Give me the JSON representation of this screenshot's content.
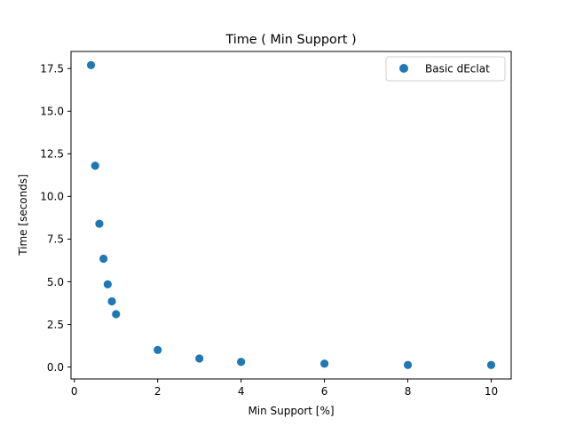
{
  "chart_data": {
    "type": "scatter",
    "title": "Time ( Min Support )",
    "xlabel": "Min Support [%]",
    "ylabel": "Time [seconds]",
    "xlim": [
      -0.08,
      10.48
    ],
    "ylim": [
      -0.7,
      18.5
    ],
    "xticks": [
      0,
      2,
      4,
      6,
      8,
      10
    ],
    "yticks": [
      0.0,
      2.5,
      5.0,
      7.5,
      10.0,
      12.5,
      15.0,
      17.5
    ],
    "xtick_labels": [
      "0",
      "2",
      "4",
      "6",
      "8",
      "10"
    ],
    "ytick_labels": [
      "0.0",
      "2.5",
      "5.0",
      "7.5",
      "10.0",
      "12.5",
      "15.0",
      "17.5"
    ],
    "grid": false,
    "legend_position": "top-right",
    "series": [
      {
        "name": "Basic dEclat",
        "color": "#1f77b4",
        "x": [
          0.4,
          0.5,
          0.6,
          0.7,
          0.8,
          0.9,
          1.0,
          2.0,
          3.0,
          4.0,
          6.0,
          8.0,
          10.0
        ],
        "y": [
          17.7,
          11.8,
          8.4,
          6.35,
          4.85,
          3.85,
          3.1,
          1.0,
          0.5,
          0.3,
          0.2,
          0.12,
          0.12
        ]
      }
    ]
  }
}
